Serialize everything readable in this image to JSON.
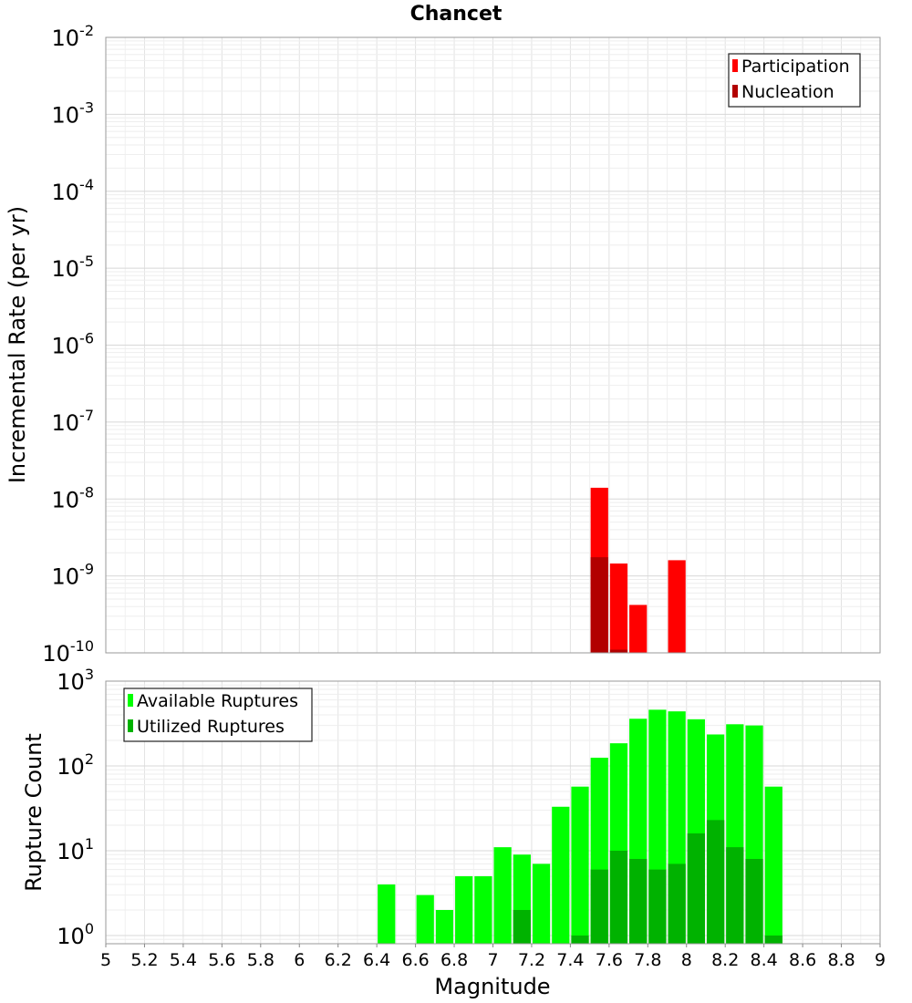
{
  "chart_data": [
    {
      "type": "bar",
      "title": "Chancet",
      "xlabel": "",
      "ylabel": "Incremental Rate (per yr)",
      "yscale": "log",
      "ylim": [
        1e-10,
        0.01
      ],
      "xlim": [
        5,
        9
      ],
      "y_tick_labels": [
        {
          "base": "10",
          "exp": "-10"
        },
        {
          "base": "10",
          "exp": "-9"
        },
        {
          "base": "10",
          "exp": "-8"
        },
        {
          "base": "10",
          "exp": "-7"
        },
        {
          "base": "10",
          "exp": "-6"
        },
        {
          "base": "10",
          "exp": "-5"
        },
        {
          "base": "10",
          "exp": "-4"
        },
        {
          "base": "10",
          "exp": "-3"
        },
        {
          "base": "10",
          "exp": "-2"
        }
      ],
      "grid": true,
      "legend_position": "top-right",
      "series": [
        {
          "name": "Participation",
          "color": "#ff0000",
          "points": [
            [
              7.55,
              1.4e-08
            ],
            [
              7.65,
              1.45e-09
            ],
            [
              7.75,
              4.2e-10
            ],
            [
              7.95,
              1.6e-09
            ]
          ]
        },
        {
          "name": "Nucleation",
          "color": "#b20000",
          "points": [
            [
              7.55,
              1.75e-09
            ],
            [
              7.65,
              1.1e-10
            ]
          ]
        }
      ]
    },
    {
      "type": "bar",
      "title": "",
      "xlabel": "Magnitude",
      "ylabel": "Rupture Count",
      "yscale": "log",
      "ylim": [
        0.8,
        1000
      ],
      "xlim": [
        5,
        9
      ],
      "x_tick_labels": [
        "5",
        "5.2",
        "5.4",
        "5.6",
        "5.8",
        "6",
        "6.2",
        "6.4",
        "6.6",
        "6.8",
        "7",
        "7.2",
        "7.4",
        "7.6",
        "7.8",
        "8",
        "8.2",
        "8.4",
        "8.6",
        "8.8",
        "9"
      ],
      "y_tick_labels": [
        {
          "base": "10",
          "exp": "0"
        },
        {
          "base": "10",
          "exp": "1"
        },
        {
          "base": "10",
          "exp": "2"
        },
        {
          "base": "10",
          "exp": "3"
        }
      ],
      "grid": true,
      "legend_position": "top-left",
      "series": [
        {
          "name": "Available Ruptures",
          "color": "#00ff00",
          "points": [
            [
              6.45,
              4
            ],
            [
              6.65,
              3
            ],
            [
              6.75,
              2
            ],
            [
              6.85,
              5
            ],
            [
              6.95,
              5
            ],
            [
              7.05,
              11
            ],
            [
              7.15,
              9
            ],
            [
              7.25,
              7
            ],
            [
              7.35,
              33
            ],
            [
              7.45,
              57
            ],
            [
              7.55,
              125
            ],
            [
              7.65,
              185
            ],
            [
              7.75,
              360
            ],
            [
              7.85,
              460
            ],
            [
              7.95,
              440
            ],
            [
              8.05,
              355
            ],
            [
              8.15,
              235
            ],
            [
              8.25,
              310
            ],
            [
              8.35,
              300
            ],
            [
              8.45,
              57
            ]
          ]
        },
        {
          "name": "Utilized Ruptures",
          "color": "#00b200",
          "points": [
            [
              7.15,
              2
            ],
            [
              7.45,
              1
            ],
            [
              7.55,
              6
            ],
            [
              7.65,
              10
            ],
            [
              7.75,
              8
            ],
            [
              7.85,
              6
            ],
            [
              7.95,
              7
            ],
            [
              8.05,
              16
            ],
            [
              8.15,
              23
            ],
            [
              8.25,
              11
            ],
            [
              8.35,
              8
            ],
            [
              8.45,
              1
            ]
          ]
        }
      ]
    }
  ]
}
